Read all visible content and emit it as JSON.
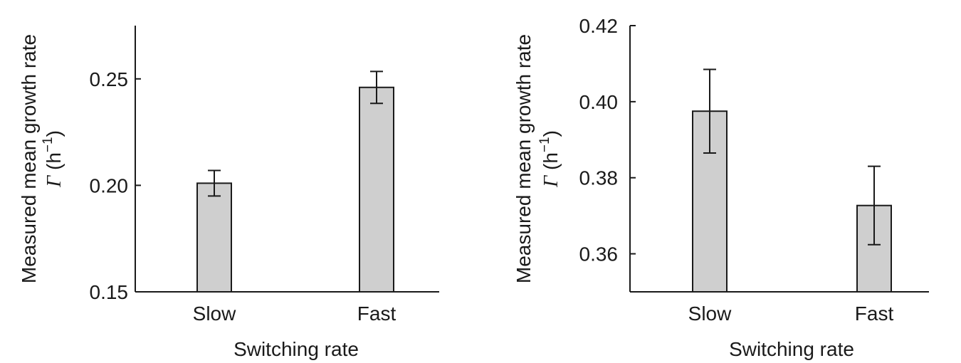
{
  "chart_data": [
    {
      "type": "bar",
      "categories": [
        "Slow",
        "Fast"
      ],
      "values": [
        0.201,
        0.246
      ],
      "errors": [
        0.006,
        0.0075
      ],
      "ylim": [
        0.15,
        0.275
      ],
      "yticks": [
        0.15,
        0.2,
        0.25
      ],
      "ytick_labels": [
        "0.15",
        "0.20",
        "0.25"
      ],
      "xlabel": "Switching rate",
      "ylabel_line1": "Measured mean growth rate",
      "ylabel_symbol": "Γ",
      "ylabel_unit": "(h",
      "ylabel_exp": "−1",
      "ylabel_close": ")",
      "bar_color": "#cfcfcf",
      "grid": false
    },
    {
      "type": "bar",
      "categories": [
        "Slow",
        "Fast"
      ],
      "values": [
        0.3975,
        0.3727
      ],
      "errors": [
        0.011,
        0.0103
      ],
      "ylim": [
        0.35,
        0.42
      ],
      "yticks": [
        0.36,
        0.38,
        0.4,
        0.42
      ],
      "ytick_labels": [
        "0.36",
        "0.38",
        "0.40",
        "0.42"
      ],
      "xlabel": "Switching rate",
      "ylabel_line1": "Measured mean growth rate",
      "ylabel_symbol": "Γ",
      "ylabel_unit": "(h",
      "ylabel_exp": "−1",
      "ylabel_close": ")",
      "bar_color": "#cfcfcf",
      "grid": false
    }
  ]
}
